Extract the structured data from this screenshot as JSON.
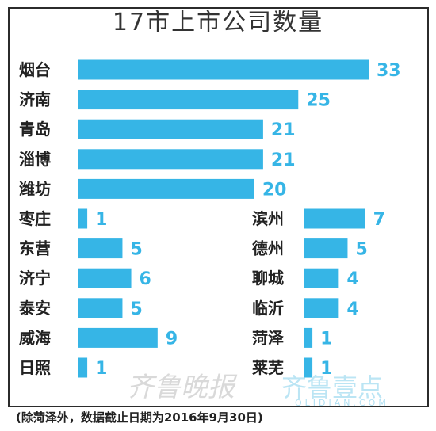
{
  "chart_data": {
    "type": "bar",
    "title": "17市上市公司数量",
    "footnote": "(除菏泽外，数据截止日期为2016年9月30日)",
    "xlim": [
      0,
      33
    ],
    "left_column": {
      "categories": [
        "烟台",
        "济南",
        "青岛",
        "淄博",
        "潍坊",
        "枣庄",
        "东营",
        "济宁",
        "泰安",
        "威海",
        "日照"
      ],
      "values": [
        33,
        25,
        21,
        21,
        20,
        1,
        5,
        6,
        5,
        9,
        1
      ]
    },
    "right_column": {
      "categories": [
        "滨州",
        "德州",
        "聊城",
        "临沂",
        "菏泽",
        "莱芜"
      ],
      "values": [
        7,
        5,
        4,
        4,
        1,
        1
      ]
    },
    "bar_color": "#36b5e6",
    "watermark": {
      "left": "齐鲁晚报",
      "right": "齐鲁壹点",
      "url": "QLIDIAN.COM"
    }
  }
}
